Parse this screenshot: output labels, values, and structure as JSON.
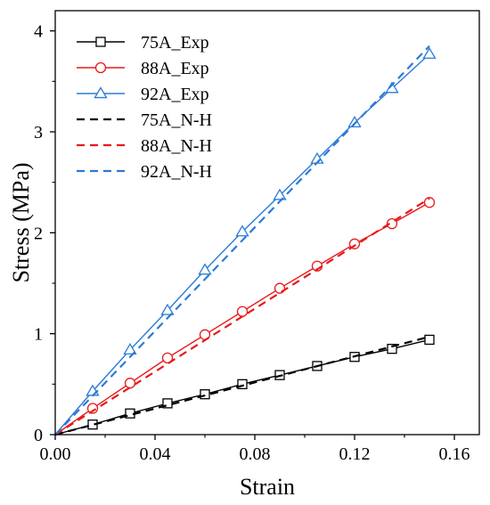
{
  "chart_data": {
    "type": "line",
    "title": "",
    "xlabel": "Strain",
    "ylabel": "Stress (MPa)",
    "xlim": [
      0.0,
      0.17
    ],
    "ylim": [
      0,
      4.2
    ],
    "xticks": [
      0.0,
      0.04,
      0.08,
      0.12,
      0.16
    ],
    "xtick_labels": [
      "0.00",
      "0.04",
      "0.08",
      "0.12",
      "0.16"
    ],
    "yticks": [
      0,
      1,
      2,
      3,
      4
    ],
    "ytick_labels": [
      "0",
      "1",
      "2",
      "3",
      "4"
    ],
    "grid": false,
    "legend_position": "top-left",
    "series": [
      {
        "name": "75A_Exp",
        "color": "#000000",
        "style": "solid",
        "marker": "square",
        "x": [
          0,
          0.015,
          0.03,
          0.045,
          0.06,
          0.075,
          0.09,
          0.105,
          0.12,
          0.135,
          0.15
        ],
        "y": [
          0,
          0.1,
          0.21,
          0.31,
          0.4,
          0.5,
          0.59,
          0.68,
          0.77,
          0.85,
          0.94
        ]
      },
      {
        "name": "88A_Exp",
        "color": "#e8191c",
        "style": "solid",
        "marker": "circle",
        "x": [
          0,
          0.015,
          0.03,
          0.045,
          0.06,
          0.075,
          0.09,
          0.105,
          0.12,
          0.135,
          0.15
        ],
        "y": [
          0,
          0.26,
          0.51,
          0.76,
          0.99,
          1.22,
          1.45,
          1.67,
          1.89,
          2.09,
          2.3
        ]
      },
      {
        "name": "92A_Exp",
        "color": "#2b7bd5",
        "style": "solid",
        "marker": "triangle",
        "x": [
          0,
          0.015,
          0.03,
          0.045,
          0.06,
          0.075,
          0.09,
          0.105,
          0.12,
          0.135,
          0.15
        ],
        "y": [
          0,
          0.43,
          0.84,
          1.23,
          1.63,
          2.01,
          2.37,
          2.73,
          3.09,
          3.43,
          3.77
        ]
      },
      {
        "name": "75A_N-H",
        "color": "#000000",
        "style": "dashed",
        "marker": "none",
        "x": [
          0,
          0.15
        ],
        "y": [
          0,
          0.97
        ]
      },
      {
        "name": "88A_N-H",
        "color": "#e8191c",
        "style": "dashed",
        "marker": "none",
        "x": [
          0,
          0.15
        ],
        "y": [
          0,
          2.34
        ]
      },
      {
        "name": "92A_N-H",
        "color": "#2b7bd5",
        "style": "dashed",
        "marker": "none",
        "x": [
          0,
          0.15
        ],
        "y": [
          0,
          3.85
        ]
      }
    ]
  }
}
